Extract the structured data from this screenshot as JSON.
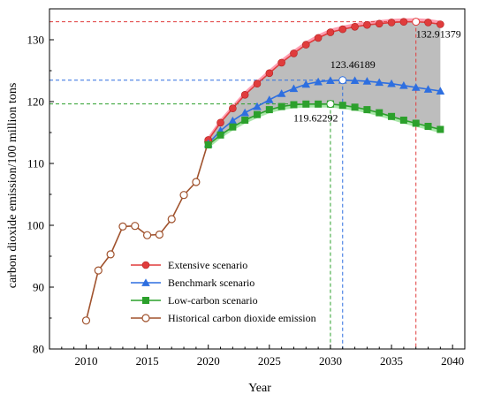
{
  "chart_data": {
    "type": "line",
    "xlabel": "Year",
    "ylabel": "carbon dioxide emission/100 million tons",
    "xlim": [
      2007,
      2041
    ],
    "ylim": [
      80,
      135
    ],
    "xticks": [
      2010,
      2015,
      2020,
      2025,
      2030,
      2035,
      2040
    ],
    "yticks": [
      80,
      90,
      100,
      110,
      120,
      130
    ],
    "legend_position": "lower-left",
    "grid": false,
    "colors": {
      "extensive": "#e03c3c",
      "benchmark": "#2e6fe0",
      "lowcarbon": "#2ca02c",
      "historical": "#a0522d",
      "band_upper": "#ff9db0",
      "band_main": "#bdbdbd",
      "band_lower": "#a8e6a8"
    },
    "series": [
      {
        "key": "historical",
        "name": "Historical carbon dioxide emission",
        "marker": "circle-open",
        "x": [
          2010,
          2011,
          2012,
          2013,
          2014,
          2015,
          2016,
          2017,
          2018,
          2019,
          2020
        ],
        "values": [
          84.6,
          92.7,
          95.3,
          99.8,
          99.9,
          98.4,
          98.5,
          101.0,
          104.9,
          107.0,
          113.5
        ]
      },
      {
        "key": "extensive",
        "name": "Extensive scenario",
        "marker": "diamond",
        "x": [
          2020,
          2021,
          2022,
          2023,
          2024,
          2025,
          2026,
          2027,
          2028,
          2029,
          2030,
          2031,
          2032,
          2033,
          2034,
          2035,
          2036,
          2037,
          2038,
          2039
        ],
        "values": [
          113.8,
          116.6,
          118.9,
          121.1,
          122.9,
          124.6,
          126.3,
          127.8,
          129.2,
          130.3,
          131.2,
          131.7,
          132.1,
          132.4,
          132.6,
          132.8,
          132.9,
          132.91,
          132.8,
          132.5
        ]
      },
      {
        "key": "benchmark",
        "name": "Benchmark scenario",
        "marker": "triangle",
        "x": [
          2020,
          2021,
          2022,
          2023,
          2024,
          2025,
          2026,
          2027,
          2028,
          2029,
          2030,
          2031,
          2032,
          2033,
          2034,
          2035,
          2036,
          2037,
          2038,
          2039
        ],
        "values": [
          113.2,
          115.3,
          116.9,
          118.2,
          119.2,
          120.3,
          121.3,
          122.1,
          122.8,
          123.2,
          123.4,
          123.46,
          123.4,
          123.3,
          123.1,
          122.9,
          122.6,
          122.3,
          122.0,
          121.7
        ]
      },
      {
        "key": "lowcarbon",
        "name": "Low-carbon scenario",
        "marker": "square",
        "x": [
          2020,
          2021,
          2022,
          2023,
          2024,
          2025,
          2026,
          2027,
          2028,
          2029,
          2030,
          2031,
          2032,
          2033,
          2034,
          2035,
          2036,
          2037,
          2038,
          2039
        ],
        "values": [
          113.0,
          114.6,
          115.9,
          117.0,
          117.9,
          118.7,
          119.2,
          119.5,
          119.6,
          119.6,
          119.62,
          119.4,
          119.1,
          118.7,
          118.2,
          117.6,
          117.0,
          116.5,
          116.0,
          115.5
        ]
      }
    ],
    "legend_order": [
      "extensive",
      "benchmark",
      "lowcarbon",
      "historical"
    ],
    "annotations": [
      {
        "label": "132.91379",
        "x": 2037,
        "y": 132.91379,
        "series": "extensive"
      },
      {
        "label": "123.46189",
        "x": 2031,
        "y": 123.46189,
        "series": "benchmark"
      },
      {
        "label": "119.62292",
        "x": 2030,
        "y": 119.62292,
        "series": "lowcarbon"
      }
    ]
  }
}
